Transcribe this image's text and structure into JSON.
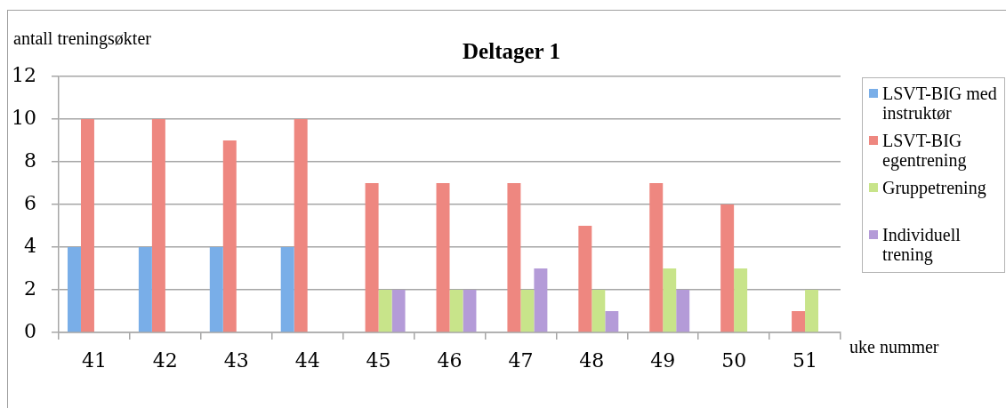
{
  "chart_data": {
    "type": "bar",
    "title": "Deltager 1",
    "xlabel": "uke nummer",
    "ylabel": "antall treningsøkter",
    "categories": [
      "41",
      "42",
      "43",
      "44",
      "45",
      "46",
      "47",
      "48",
      "49",
      "50",
      "51"
    ],
    "series": [
      {
        "name": "LSVT-BIG med instruktør",
        "color": "#79aee8",
        "values": [
          4,
          4,
          4,
          4,
          null,
          null,
          null,
          null,
          null,
          null,
          null
        ]
      },
      {
        "name": "LSVT-BIG egentrening",
        "color": "#ee8780",
        "values": [
          10,
          10,
          9,
          10,
          7,
          7,
          7,
          5,
          7,
          6,
          1
        ]
      },
      {
        "name": "Gruppetrening",
        "color": "#c8e48a",
        "values": [
          null,
          null,
          null,
          null,
          2,
          2,
          2,
          2,
          3,
          3,
          2
        ]
      },
      {
        "name": "Individuell trening",
        "color": "#b49bd8",
        "values": [
          null,
          null,
          null,
          null,
          2,
          2,
          3,
          1,
          2,
          null,
          null
        ]
      }
    ],
    "ylim": [
      0,
      12
    ],
    "yticks": [
      0,
      2,
      4,
      6,
      8,
      10,
      12
    ],
    "grid": "y",
    "legend": "right"
  }
}
